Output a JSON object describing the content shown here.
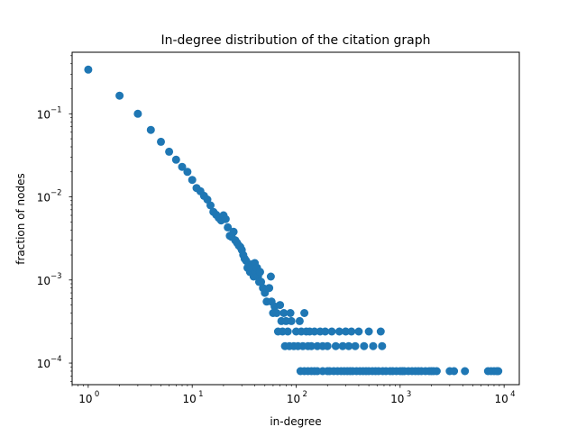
{
  "chart_data": {
    "type": "scatter",
    "title": "In-degree distribution of the citation graph",
    "xlabel": "in-degree",
    "ylabel": "fraction of nodes",
    "xscale": "log",
    "yscale": "log",
    "xlim": [
      0.7,
      14000
    ],
    "ylim": [
      5.5e-05,
      0.55
    ],
    "x_ticks": [
      {
        "base": "10",
        "exp": "0"
      },
      {
        "base": "10",
        "exp": "1"
      },
      {
        "base": "10",
        "exp": "2"
      },
      {
        "base": "10",
        "exp": "3"
      },
      {
        "base": "10",
        "exp": "4"
      }
    ],
    "y_ticks": [
      {
        "base": "10",
        "exp": "−4"
      },
      {
        "base": "10",
        "exp": "−3"
      },
      {
        "base": "10",
        "exp": "−2"
      },
      {
        "base": "10",
        "exp": "−1"
      }
    ],
    "marker_color": "#1f77b4",
    "grid": false,
    "legend": "none",
    "series": [
      {
        "points": [
          [
            1,
            0.34
          ],
          [
            2,
            0.165
          ],
          [
            3,
            0.1
          ],
          [
            4,
            0.064
          ],
          [
            5,
            0.046
          ],
          [
            6,
            0.035
          ],
          [
            7,
            0.028
          ],
          [
            8,
            0.023
          ],
          [
            9,
            0.02
          ],
          [
            10,
            0.016
          ],
          [
            11,
            0.0128
          ],
          [
            12,
            0.0117
          ],
          [
            13,
            0.0103
          ],
          [
            14,
            0.0093
          ],
          [
            15,
            0.0079
          ],
          [
            16,
            0.0066
          ],
          [
            17,
            0.0061
          ],
          [
            18,
            0.0056
          ],
          [
            19,
            0.0052
          ],
          [
            20,
            0.006
          ],
          [
            21,
            0.0054
          ],
          [
            22,
            0.0043
          ],
          [
            23,
            0.0034
          ],
          [
            24,
            0.0033
          ],
          [
            25,
            0.0038
          ],
          [
            26,
            0.003
          ],
          [
            27,
            0.0028
          ],
          [
            28,
            0.0026
          ],
          [
            29,
            0.0025
          ],
          [
            30,
            0.0023
          ],
          [
            31,
            0.002
          ],
          [
            32,
            0.0018
          ],
          [
            33,
            0.0017
          ],
          [
            34,
            0.0014
          ],
          [
            35,
            0.00155
          ],
          [
            36,
            0.00125
          ],
          [
            37,
            0.0014
          ],
          [
            38,
            0.00155
          ],
          [
            39,
            0.0011
          ],
          [
            40,
            0.0016
          ],
          [
            41,
            0.00125
          ],
          [
            42,
            0.0014
          ],
          [
            43,
            0.0011
          ],
          [
            44,
            0.00095
          ],
          [
            45,
            0.00125
          ],
          [
            46,
            0.00095
          ],
          [
            48,
            0.0008
          ],
          [
            50,
            0.0007
          ],
          [
            52,
            0.00055
          ],
          [
            55,
            0.0008
          ],
          [
            57,
            0.0011
          ],
          [
            58,
            0.00055
          ],
          [
            60,
            0.0004
          ],
          [
            62,
            0.00048
          ],
          [
            65,
            0.0004
          ],
          [
            67,
            0.00024
          ],
          [
            70,
            0.0005
          ],
          [
            72,
            0.00032
          ],
          [
            74,
            0.00024
          ],
          [
            76,
            0.0004
          ],
          [
            78,
            0.00016
          ],
          [
            80,
            0.00032
          ],
          [
            83,
            0.00024
          ],
          [
            86,
            0.00016
          ],
          [
            88,
            0.0004
          ],
          [
            90,
            0.00032
          ],
          [
            95,
            0.00016
          ],
          [
            100,
            0.00024
          ],
          [
            104,
            0.00016
          ],
          [
            108,
            0.00032
          ],
          [
            112,
            0.00024
          ],
          [
            116,
            0.00016
          ],
          [
            120,
            0.0004
          ],
          [
            125,
            0.00024
          ],
          [
            130,
            0.00016
          ],
          [
            135,
            0.00024
          ],
          [
            140,
            0.00016
          ],
          [
            150,
            0.00024
          ],
          [
            160,
            0.00016
          ],
          [
            170,
            0.00024
          ],
          [
            180,
            0.00016
          ],
          [
            190,
            0.00024
          ],
          [
            200,
            0.00016
          ],
          [
            220,
            0.00024
          ],
          [
            240,
            0.00016
          ],
          [
            260,
            0.00024
          ],
          [
            280,
            0.00016
          ],
          [
            300,
            0.00024
          ],
          [
            320,
            0.00016
          ],
          [
            340,
            0.00024
          ],
          [
            370,
            0.00016
          ],
          [
            400,
            0.00024
          ],
          [
            450,
            0.00016
          ],
          [
            500,
            0.00024
          ],
          [
            550,
            0.00016
          ],
          [
            650,
            0.00024
          ],
          [
            670,
            0.00016
          ],
          [
            110,
            8e-05
          ],
          [
            120,
            8e-05
          ],
          [
            130,
            8e-05
          ],
          [
            140,
            8e-05
          ],
          [
            150,
            8e-05
          ],
          [
            160,
            8e-05
          ],
          [
            180,
            8e-05
          ],
          [
            200,
            8e-05
          ],
          [
            210,
            8e-05
          ],
          [
            230,
            8e-05
          ],
          [
            250,
            8e-05
          ],
          [
            270,
            8e-05
          ],
          [
            290,
            8e-05
          ],
          [
            310,
            8e-05
          ],
          [
            330,
            8e-05
          ],
          [
            350,
            8e-05
          ],
          [
            380,
            8e-05
          ],
          [
            410,
            8e-05
          ],
          [
            440,
            8e-05
          ],
          [
            470,
            8e-05
          ],
          [
            500,
            8e-05
          ],
          [
            540,
            8e-05
          ],
          [
            580,
            8e-05
          ],
          [
            620,
            8e-05
          ],
          [
            680,
            8e-05
          ],
          [
            730,
            8e-05
          ],
          [
            800,
            8e-05
          ],
          [
            850,
            8e-05
          ],
          [
            920,
            8e-05
          ],
          [
            1000,
            8e-05
          ],
          [
            1050,
            8e-05
          ],
          [
            1100,
            8e-05
          ],
          [
            1200,
            8e-05
          ],
          [
            1300,
            8e-05
          ],
          [
            1400,
            8e-05
          ],
          [
            1500,
            8e-05
          ],
          [
            1600,
            8e-05
          ],
          [
            1750,
            8e-05
          ],
          [
            1900,
            8e-05
          ],
          [
            2000,
            8e-05
          ],
          [
            2100,
            8e-05
          ],
          [
            2250,
            8e-05
          ],
          [
            3000,
            8e-05
          ],
          [
            3300,
            8e-05
          ],
          [
            4200,
            8e-05
          ],
          [
            7000,
            8e-05
          ],
          [
            7500,
            8e-05
          ],
          [
            8000,
            8e-05
          ],
          [
            8500,
            8e-05
          ],
          [
            8800,
            8e-05
          ]
        ]
      }
    ]
  }
}
